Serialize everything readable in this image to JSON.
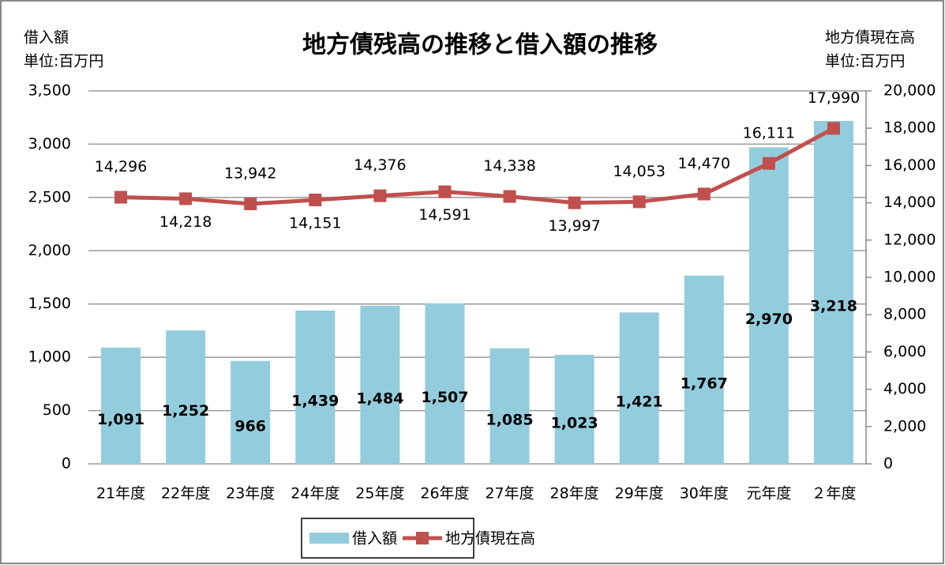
{
  "chart_data": {
    "type": "combo",
    "title": "地方債残高の推移と借入額の推移",
    "y_label": [
      "借入額",
      "単位:百万円"
    ],
    "y2_label": [
      "地方債現在高",
      "単位:百万円"
    ],
    "categories": [
      "21年度",
      "22年度",
      "23年度",
      "24年度",
      "25年度",
      "26年度",
      "27年度",
      "28年度",
      "29年度",
      "30年度",
      "元年度",
      "２年度"
    ],
    "series": [
      {
        "name": "借入額",
        "type": "bar",
        "color": "#93cddd",
        "values": [
          1091,
          1252,
          966,
          1439,
          1484,
          1507,
          1085,
          1023,
          1421,
          1767,
          2970,
          3218
        ],
        "value_labels": [
          "1,091",
          "1,252",
          "966",
          "1,439",
          "1,484",
          "1,507",
          "1,085",
          "1,023",
          "1,421",
          "1,767",
          "2,970",
          "3,218"
        ]
      },
      {
        "name": "地方債現在高",
        "type": "line",
        "axis": "y2",
        "color": "#c0504d",
        "values": [
          14296,
          14218,
          13942,
          14151,
          14376,
          14591,
          14338,
          13997,
          14053,
          14470,
          16111,
          17990
        ],
        "value_labels": [
          "14,296",
          "14,218",
          "13,942",
          "14,151",
          "14,376",
          "14,591",
          "14,338",
          "13,997",
          "14,053",
          "14,470",
          "16,111",
          "17,990"
        ]
      }
    ],
    "ylim": [
      0,
      3500
    ],
    "yticks": [
      0,
      500,
      {
        "value": 1000,
        "label": "1,000"
      },
      {
        "value": 1500,
        "label": "1,500"
      },
      {
        "value": 2000,
        "label": "2,000"
      },
      {
        "value": 2500,
        "label": "2,500"
      },
      {
        "value": 3000,
        "label": "3,000"
      },
      {
        "value": 3500,
        "label": "3,500"
      }
    ],
    "y2lim": [
      0,
      20000
    ],
    "y2ticks": [
      0,
      {
        "value": 2000,
        "label": "2,000"
      },
      {
        "value": 4000,
        "label": "4,000"
      },
      {
        "value": 6000,
        "label": "6,000"
      },
      {
        "value": 8000,
        "label": "8,000"
      },
      {
        "value": 10000,
        "label": "10,000"
      },
      {
        "value": 12000,
        "label": "12,000"
      },
      {
        "value": 14000,
        "label": "14,000"
      },
      {
        "value": 16000,
        "label": "16,000"
      },
      {
        "value": 18000,
        "label": "18,000"
      },
      {
        "value": 20000,
        "label": "20,000"
      }
    ],
    "grid": true,
    "legend": "bottom"
  }
}
